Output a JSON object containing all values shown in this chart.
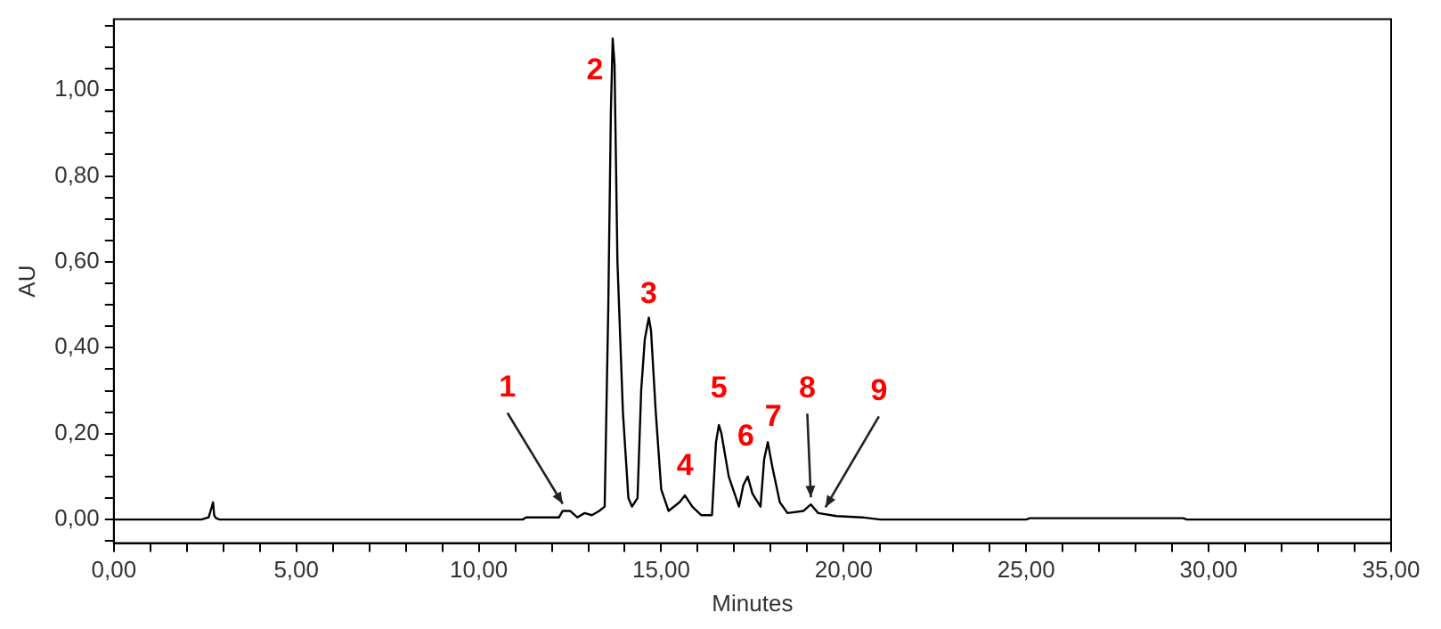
{
  "chart_data": {
    "type": "line",
    "xlabel": "Minutes",
    "ylabel": "AU",
    "x": [
      0,
      2.4,
      2.6,
      2.72,
      2.75,
      2.8,
      2.9,
      11.2,
      11.3,
      12.2,
      12.3,
      12.5,
      12.7,
      12.9,
      13.1,
      13.3,
      13.45,
      13.55,
      13.62,
      13.67,
      13.72,
      13.8,
      13.95,
      14.1,
      14.2,
      14.35,
      14.45,
      14.55,
      14.66,
      14.72,
      14.85,
      15.0,
      15.2,
      15.5,
      15.65,
      15.85,
      16.1,
      16.39,
      16.5,
      16.58,
      16.65,
      16.85,
      17.13,
      17.25,
      17.37,
      17.5,
      17.72,
      17.82,
      17.92,
      18.05,
      18.25,
      18.46,
      18.9,
      19.1,
      19.3,
      19.8,
      20.5,
      21.0,
      22.0,
      25.0,
      25.1,
      29.3,
      29.4,
      35.0
    ],
    "series": [
      {
        "color": "#000000",
        "values": [
          0,
          0,
          0.005,
          0.04,
          0.01,
          0.003,
          0,
          0,
          0.005,
          0.005,
          0.02,
          0.02,
          0.005,
          0.015,
          0.01,
          0.02,
          0.03,
          0.5,
          0.95,
          1.12,
          1.06,
          0.6,
          0.25,
          0.05,
          0.03,
          0.05,
          0.3,
          0.42,
          0.47,
          0.44,
          0.25,
          0.07,
          0.02,
          0.04,
          0.056,
          0.03,
          0.01,
          0.01,
          0.18,
          0.22,
          0.2,
          0.1,
          0.03,
          0.08,
          0.1,
          0.06,
          0.03,
          0.14,
          0.18,
          0.12,
          0.04,
          0.015,
          0.02,
          0.035,
          0.015,
          0.008,
          0.005,
          0,
          0,
          0,
          0.003,
          0.003,
          0,
          0
        ]
      }
    ],
    "xlim": [
      0,
      35
    ],
    "xticks": [
      {
        "value": 0,
        "label": "0,00"
      },
      {
        "value": 1,
        "label": null
      },
      {
        "value": 2,
        "label": null
      },
      {
        "value": 3,
        "label": null
      },
      {
        "value": 4,
        "label": null
      },
      {
        "value": 5,
        "label": "5,00"
      },
      {
        "value": 6,
        "label": null
      },
      {
        "value": 7,
        "label": null
      },
      {
        "value": 8,
        "label": null
      },
      {
        "value": 9,
        "label": null
      },
      {
        "value": 10,
        "label": "10,00"
      },
      {
        "value": 11,
        "label": null
      },
      {
        "value": 12,
        "label": null
      },
      {
        "value": 13,
        "label": null
      },
      {
        "value": 14,
        "label": null
      },
      {
        "value": 15,
        "label": "15,00"
      },
      {
        "value": 16,
        "label": null
      },
      {
        "value": 17,
        "label": null
      },
      {
        "value": 18,
        "label": null
      },
      {
        "value": 19,
        "label": null
      },
      {
        "value": 20,
        "label": "20,00"
      },
      {
        "value": 21,
        "label": null
      },
      {
        "value": 22,
        "label": null
      },
      {
        "value": 23,
        "label": null
      },
      {
        "value": 24,
        "label": null
      },
      {
        "value": 25,
        "label": "25,00"
      },
      {
        "value": 26,
        "label": null
      },
      {
        "value": 27,
        "label": null
      },
      {
        "value": 28,
        "label": null
      },
      {
        "value": 29,
        "label": null
      },
      {
        "value": 30,
        "label": "30,00"
      },
      {
        "value": 31,
        "label": null
      },
      {
        "value": 32,
        "label": null
      },
      {
        "value": 33,
        "label": null
      },
      {
        "value": 34,
        "label": null
      },
      {
        "value": 35,
        "label": "35,00"
      }
    ],
    "ylim": [
      -0.055,
      1.165
    ],
    "yticks": [
      {
        "value": -0.05,
        "label": null
      },
      {
        "value": 0,
        "label": "0,00"
      },
      {
        "value": 0.05,
        "label": null
      },
      {
        "value": 0.1,
        "label": null
      },
      {
        "value": 0.15,
        "label": null
      },
      {
        "value": 0.2,
        "label": "0,20"
      },
      {
        "value": 0.25,
        "label": null
      },
      {
        "value": 0.3,
        "label": null
      },
      {
        "value": 0.35,
        "label": null
      },
      {
        "value": 0.4,
        "label": "0,40"
      },
      {
        "value": 0.45,
        "label": null
      },
      {
        "value": 0.5,
        "label": null
      },
      {
        "value": 0.55,
        "label": null
      },
      {
        "value": 0.6,
        "label": "0,60"
      },
      {
        "value": 0.65,
        "label": null
      },
      {
        "value": 0.7,
        "label": null
      },
      {
        "value": 0.75,
        "label": null
      },
      {
        "value": 0.8,
        "label": "0,80"
      },
      {
        "value": 0.85,
        "label": null
      },
      {
        "value": 0.9,
        "label": null
      },
      {
        "value": 0.95,
        "label": null
      },
      {
        "value": 1,
        "label": "1,00"
      },
      {
        "value": 1.05,
        "label": null
      },
      {
        "value": 1.1,
        "label": null
      },
      {
        "value": 1.15,
        "label": null
      }
    ],
    "annotations": [
      {
        "text": "1",
        "x": 12.3,
        "y": 0.02
      },
      {
        "text": "2",
        "x": 13.67,
        "y": 1.12
      },
      {
        "text": "3",
        "x": 14.66,
        "y": 0.47
      },
      {
        "text": "4",
        "x": 15.65,
        "y": 0.056
      },
      {
        "text": "5",
        "x": 16.58,
        "y": 0.22
      },
      {
        "text": "6",
        "x": 17.37,
        "y": 0.1
      },
      {
        "text": "7",
        "x": 17.92,
        "y": 0.18
      },
      {
        "text": "8",
        "x": 19.1,
        "y": 0.035
      },
      {
        "text": "9",
        "x": 19.5,
        "y": 0.012
      }
    ],
    "grid": false,
    "legend": false,
    "marker": "none",
    "line_style": "solid"
  }
}
